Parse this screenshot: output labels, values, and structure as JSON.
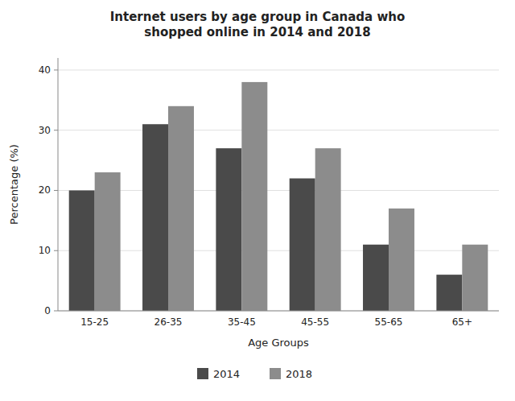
{
  "chart_data": {
    "type": "bar",
    "title": "Internet users by age group in Canada who\nshopped online in 2014 and 2018",
    "xlabel": "Age Groups",
    "ylabel": "Percentage (%)",
    "categories": [
      "15-25",
      "26-35",
      "35-45",
      "45-55",
      "55-65",
      "65+"
    ],
    "series": [
      {
        "name": "2014",
        "color": "#4a4a4a",
        "values": [
          20,
          31,
          27,
          22,
          11,
          6
        ]
      },
      {
        "name": "2018",
        "color": "#8c8c8c",
        "values": [
          23,
          34,
          38,
          27,
          17,
          11
        ]
      }
    ],
    "ylim": [
      0,
      42
    ],
    "yticks": [
      0,
      10,
      20,
      30,
      40
    ],
    "grid": true,
    "legend": "bottom"
  }
}
